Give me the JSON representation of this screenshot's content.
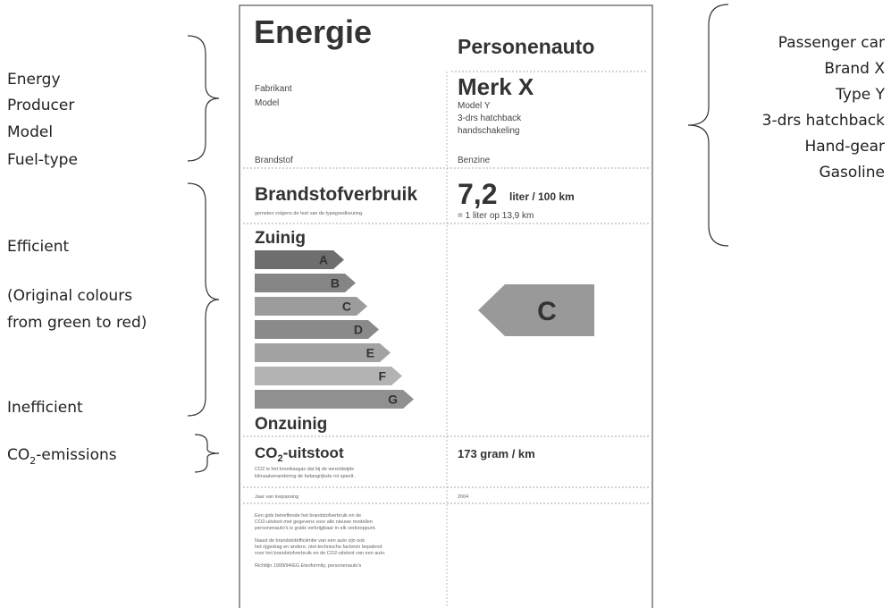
{
  "annotations_left": {
    "energy": "Energy",
    "producer": "Producer",
    "model": "Model",
    "fuel": "Fuel-type",
    "efficient": "Efficient",
    "colours_1": "(Original colours",
    "colours_2": "from green to red)",
    "inefficient": "Inefficient",
    "co2_main": "CO",
    "co2_sub": "2",
    "co2_rest": "-emissions"
  },
  "annotations_right": [
    "Passenger car",
    "Brand X",
    "Type Y",
    "3-drs hatchback",
    "Hand-gear",
    "Gasoline"
  ],
  "label": {
    "title": "Energie",
    "vehicle": "Personenauto",
    "fields": {
      "producer": "Fabrikant",
      "model": "Model",
      "fuel": "Brandstof"
    },
    "values": {
      "brand": "Merk X",
      "model": "Model Y",
      "body": "3-drs hatchback",
      "gear": "handschakeling",
      "fuel": "Benzine"
    },
    "consumption": {
      "title": "Brandstofverbruik",
      "note": "gemeten volgens de test van de typegoedkeuring.",
      "value": "7,2",
      "unit": "liter / 100 km",
      "equivalent": "= 1 liter op 13,9 km"
    },
    "scale": {
      "top": "Zuinig",
      "bottom": "Onzuinig",
      "classes": [
        "A",
        "B",
        "C",
        "D",
        "E",
        "F",
        "G"
      ],
      "rating": "C"
    },
    "co2": {
      "main": "CO",
      "sub": "2",
      "rest": "-uitstoot",
      "note_1": "CO2 is het broeikasgas dat bij de wereldwijde",
      "note_2": "klimaatverandering de belangrijkste rol speelt.",
      "value": "173 gram / km"
    },
    "year": {
      "label": "Jaar van toepassing",
      "value": "2004"
    },
    "text": [
      "Een gids betreffende het brandstofverbruik en de",
      "CO2-uitstoot met gegevens voor alle nieuwe modellen",
      "personenauto's is gratis verkrijgbaar in elk verkooppunt.",
      "Naast de brandstofefficiëntie van een auto zijn ook",
      "het rijgedrag en andere, niet-technische factoren bepalend",
      "voor het brandstofverbruik en de CO2-uitstoot van een auto.",
      "Richtlijn 1999/94/EG Eleoformity, personenauto's"
    ]
  }
}
